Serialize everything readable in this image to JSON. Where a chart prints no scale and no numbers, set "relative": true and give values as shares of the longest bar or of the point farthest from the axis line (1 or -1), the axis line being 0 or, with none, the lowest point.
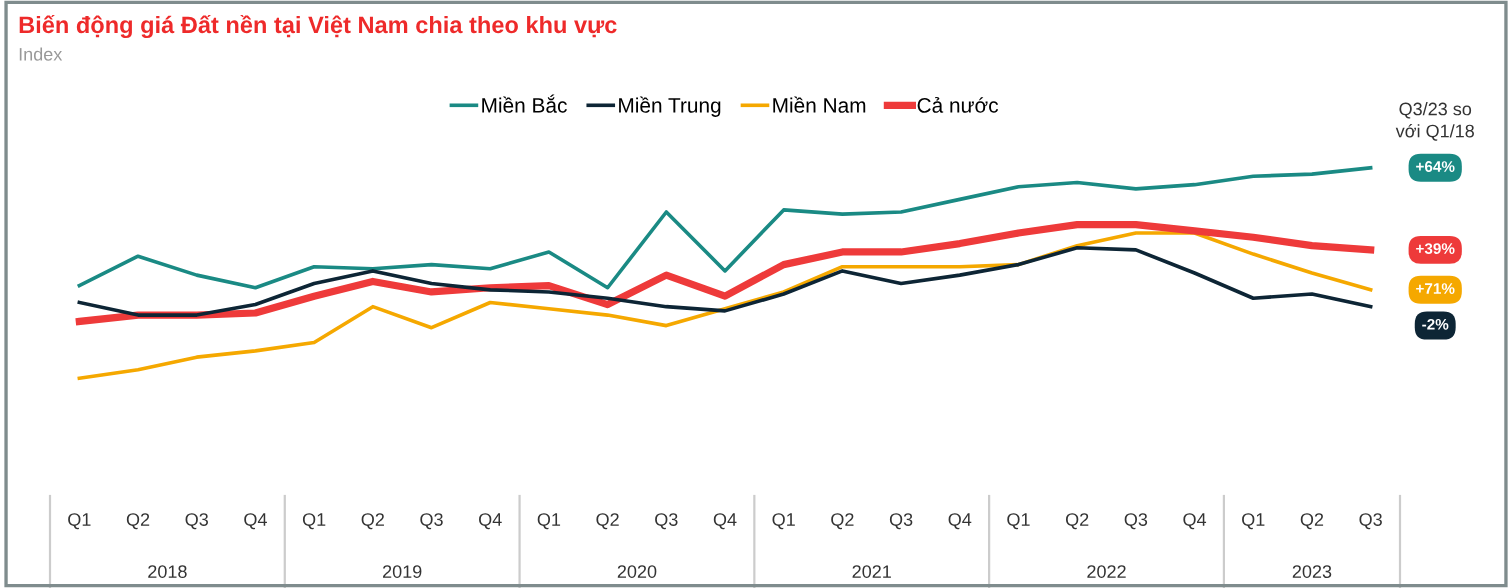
{
  "chart_data": {
    "type": "line",
    "title": "Biến động giá Đất nền tại Việt Nam chia theo khu vực",
    "relative": true,
    "legend": "top",
    "grid": false,
    "marker": "none",
    "line_style": "solid",
    "categories": [
      "Q1",
      "Q2",
      "Q3",
      "Q4",
      "Q1",
      "Q2",
      "Q3",
      "Q4",
      "Q1",
      "Q2",
      "Q3",
      "Q4",
      "Q1",
      "Q2",
      "Q3",
      "Q4",
      "Q1",
      "Q2",
      "Q3",
      "Q4",
      "Q1",
      "Q2",
      "Q3"
    ],
    "series": [
      {
        "name": "Miền Bắc",
        "color": "#1a8a84",
        "values": [
          0.44,
          0.58,
          0.49,
          0.43,
          0.53,
          0.52,
          0.54,
          0.52,
          0.6,
          0.43,
          0.79,
          0.51,
          0.8,
          0.78,
          0.79,
          0.85,
          0.91,
          0.93,
          0.9,
          0.92,
          0.96,
          0.97,
          1.0
        ]
      },
      {
        "name": "Miền Trung",
        "color": "#0d2535",
        "values": [
          0.36,
          0.3,
          0.3,
          0.35,
          0.45,
          0.51,
          0.45,
          0.42,
          0.41,
          0.38,
          0.34,
          0.32,
          0.4,
          0.51,
          0.45,
          0.49,
          0.54,
          0.62,
          0.61,
          0.5,
          0.38,
          0.4,
          0.34
        ]
      },
      {
        "name": "Miền Nam",
        "color": "#f5a800",
        "values": [
          0.0,
          0.04,
          0.1,
          0.13,
          0.17,
          0.34,
          0.24,
          0.36,
          0.33,
          0.3,
          0.25,
          0.33,
          0.41,
          0.53,
          0.53,
          0.53,
          0.54,
          0.63,
          0.69,
          0.69,
          0.59,
          0.5,
          0.42
        ]
      },
      {
        "name": "Cả nước",
        "color": "#ee3a3a",
        "values": [
          0.27,
          0.3,
          0.3,
          0.31,
          0.39,
          0.46,
          0.41,
          0.43,
          0.44,
          0.35,
          0.49,
          0.39,
          0.54,
          0.6,
          0.6,
          0.64,
          0.69,
          0.73,
          0.73,
          0.7,
          0.67,
          0.63,
          0.61
        ]
      }
    ],
    "annotations": [
      "Index",
      "Q3/23 so\nvới Q1/18",
      "+64%",
      "-2%",
      "+71%",
      "+39%",
      "2018",
      "2019",
      "2020",
      "2021",
      "2022",
      "2023"
    ]
  }
}
